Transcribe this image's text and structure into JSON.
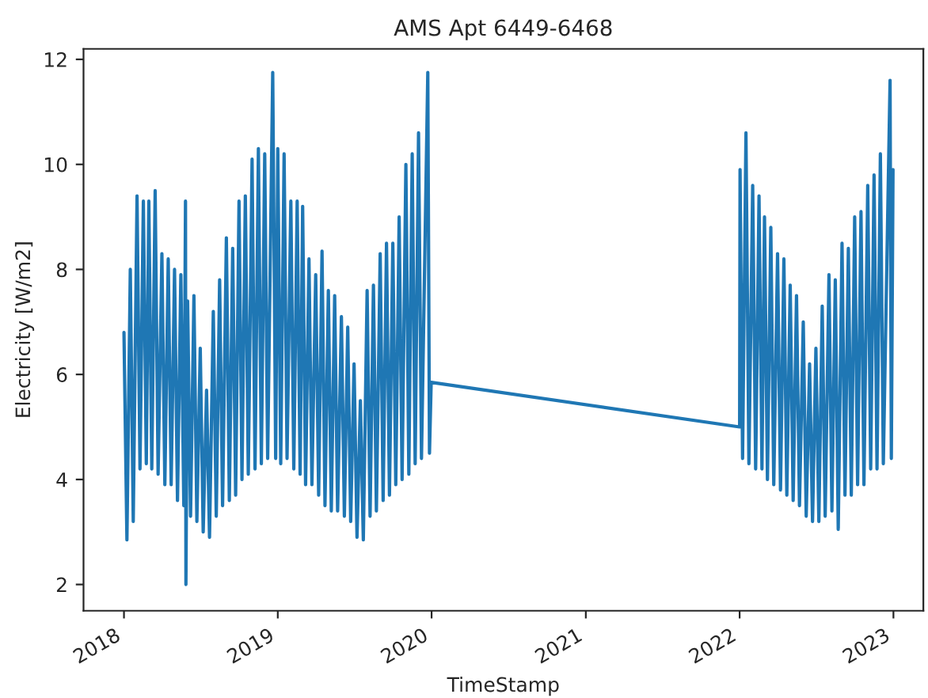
{
  "chart_data": {
    "type": "line",
    "title": "AMS Apt 6449-6468",
    "xlabel": "TimeStamp",
    "ylabel": "Electricity [W/m2]",
    "xlim": [
      "2017-09-27",
      "2023-03-13"
    ],
    "xticks": [
      {
        "value": "2018-01-01",
        "label": "2018"
      },
      {
        "value": "2019-01-01",
        "label": "2019"
      },
      {
        "value": "2020-01-01",
        "label": "2020"
      },
      {
        "value": "2021-01-01",
        "label": "2021"
      },
      {
        "value": "2022-01-01",
        "label": "2022"
      },
      {
        "value": "2023-01-01",
        "label": "2023"
      }
    ],
    "ylim": [
      1.5,
      12.2
    ],
    "yticks": [
      2,
      4,
      6,
      8,
      10,
      12
    ],
    "grid": false,
    "marker": "none",
    "line_style": "solid",
    "series": [
      {
        "color": "#1f77b4",
        "x": [
          "2018-01-01",
          "2018-01-08",
          "2018-01-16",
          "2018-01-23",
          "2018-02-01",
          "2018-02-08",
          "2018-02-16",
          "2018-02-23",
          "2018-03-01",
          "2018-03-08",
          "2018-03-16",
          "2018-03-23",
          "2018-04-01",
          "2018-04-08",
          "2018-04-16",
          "2018-04-23",
          "2018-05-01",
          "2018-05-08",
          "2018-05-16",
          "2018-05-23",
          "2018-05-27",
          "2018-05-28",
          "2018-06-01",
          "2018-06-08",
          "2018-06-16",
          "2018-06-23",
          "2018-07-01",
          "2018-07-08",
          "2018-07-16",
          "2018-07-23",
          "2018-08-01",
          "2018-08-08",
          "2018-08-16",
          "2018-08-23",
          "2018-09-01",
          "2018-09-08",
          "2018-09-16",
          "2018-09-23",
          "2018-10-01",
          "2018-10-08",
          "2018-10-16",
          "2018-10-23",
          "2018-11-01",
          "2018-11-08",
          "2018-11-16",
          "2018-11-23",
          "2018-12-01",
          "2018-12-08",
          "2018-12-20",
          "2018-12-27",
          "2019-01-01",
          "2019-01-08",
          "2019-01-16",
          "2019-01-23",
          "2019-02-01",
          "2019-02-08",
          "2019-02-16",
          "2019-02-23",
          "2019-03-01",
          "2019-03-08",
          "2019-03-16",
          "2019-03-23",
          "2019-04-01",
          "2019-04-08",
          "2019-04-16",
          "2019-04-23",
          "2019-05-01",
          "2019-05-08",
          "2019-05-16",
          "2019-05-23",
          "2019-06-01",
          "2019-06-08",
          "2019-06-16",
          "2019-06-23",
          "2019-07-01",
          "2019-07-08",
          "2019-07-16",
          "2019-07-23",
          "2019-08-01",
          "2019-08-08",
          "2019-08-16",
          "2019-08-23",
          "2019-09-01",
          "2019-09-08",
          "2019-09-16",
          "2019-09-23",
          "2019-10-01",
          "2019-10-08",
          "2019-10-16",
          "2019-10-23",
          "2019-11-01",
          "2019-11-08",
          "2019-11-16",
          "2019-11-23",
          "2019-12-01",
          "2019-12-08",
          "2019-12-23",
          "2019-12-27",
          "2019-12-31",
          "2022-01-01",
          "2022-01-02",
          "2022-01-08",
          "2022-01-16",
          "2022-01-23",
          "2022-02-01",
          "2022-02-08",
          "2022-02-16",
          "2022-02-23",
          "2022-03-01",
          "2022-03-08",
          "2022-03-16",
          "2022-03-23",
          "2022-04-01",
          "2022-04-08",
          "2022-04-16",
          "2022-04-23",
          "2022-05-01",
          "2022-05-08",
          "2022-05-16",
          "2022-05-23",
          "2022-06-01",
          "2022-06-08",
          "2022-06-16",
          "2022-06-23",
          "2022-07-01",
          "2022-07-08",
          "2022-07-16",
          "2022-07-23",
          "2022-08-01",
          "2022-08-08",
          "2022-08-16",
          "2022-08-23",
          "2022-09-01",
          "2022-09-08",
          "2022-09-16",
          "2022-09-23",
          "2022-10-01",
          "2022-10-08",
          "2022-10-16",
          "2022-10-23",
          "2022-11-01",
          "2022-11-08",
          "2022-11-16",
          "2022-11-23",
          "2022-12-01",
          "2022-12-08",
          "2022-12-24",
          "2022-12-27",
          "2022-12-31"
        ],
        "values": [
          6.8,
          2.85,
          8.0,
          3.2,
          9.4,
          4.2,
          9.3,
          4.3,
          9.3,
          4.2,
          9.5,
          4.1,
          8.3,
          3.9,
          8.2,
          3.9,
          8.0,
          3.6,
          7.9,
          3.5,
          9.3,
          2.0,
          7.4,
          3.3,
          7.5,
          3.2,
          6.5,
          3.0,
          5.7,
          2.9,
          7.2,
          3.3,
          7.8,
          3.5,
          8.6,
          3.6,
          8.4,
          3.7,
          9.3,
          4.0,
          9.4,
          4.1,
          10.1,
          4.2,
          10.3,
          4.3,
          10.2,
          4.4,
          11.75,
          4.4,
          10.3,
          4.3,
          10.2,
          4.4,
          9.3,
          4.2,
          9.3,
          4.1,
          9.2,
          3.9,
          8.2,
          3.9,
          7.9,
          3.7,
          8.35,
          3.5,
          7.6,
          3.4,
          7.5,
          3.4,
          7.1,
          3.3,
          6.9,
          3.2,
          6.2,
          2.9,
          5.5,
          2.85,
          7.6,
          3.3,
          7.7,
          3.4,
          8.3,
          3.6,
          8.5,
          3.7,
          8.5,
          3.9,
          9.0,
          4.0,
          10.0,
          4.1,
          10.2,
          4.3,
          10.6,
          4.4,
          11.75,
          4.5,
          5.85,
          5.0,
          9.9,
          4.4,
          10.6,
          4.3,
          9.6,
          4.2,
          9.4,
          4.2,
          9.0,
          4.0,
          8.8,
          3.9,
          8.3,
          3.8,
          8.2,
          3.7,
          7.7,
          3.6,
          7.5,
          3.5,
          7.0,
          3.3,
          6.2,
          3.2,
          6.5,
          3.2,
          7.3,
          3.3,
          7.9,
          3.4,
          7.8,
          3.05,
          8.5,
          3.7,
          8.4,
          3.7,
          9.0,
          3.9,
          9.1,
          3.9,
          9.6,
          4.2,
          9.8,
          4.2,
          10.2,
          4.3,
          11.6,
          4.4,
          9.9
        ]
      }
    ]
  }
}
